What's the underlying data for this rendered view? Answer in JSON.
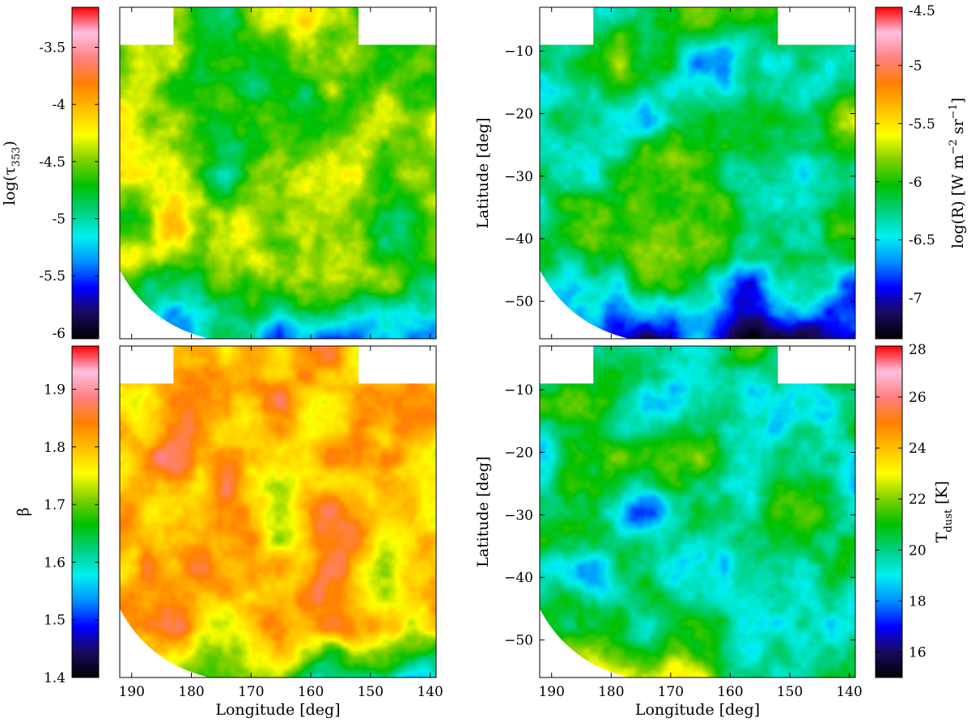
{
  "chart_data": [
    {
      "type": "heatmap",
      "panel": "top-left",
      "quantity": "log(τ353)",
      "colorbar": {
        "label_main": "log(τ",
        "label_sub": "353",
        "label_close": ")",
        "min": -6.05,
        "max": -3.15,
        "ticks": [
          -3.5,
          -4,
          -4.5,
          -5,
          -5.5,
          -6
        ],
        "tick_labels": [
          "-3.5",
          "-4",
          "-4.5",
          "-5",
          "-5.5",
          "-6"
        ],
        "side": "left"
      },
      "xlim": [
        192,
        139
      ],
      "ylim": [
        -56,
        -3
      ],
      "xlabel": "",
      "ylabel": "",
      "xticks": [
        190,
        180,
        170,
        160,
        150,
        140
      ],
      "show_x_tick_labels": false,
      "show_y_tick_labels": false,
      "bias": 0.55
    },
    {
      "type": "heatmap",
      "panel": "top-right",
      "quantity": "log(R) [W m-2 sr-1]",
      "colorbar": {
        "label_main": "log(R) [W m",
        "label_sup1": "−2",
        "label_mid": " sr",
        "label_sup2": "−1",
        "label_close": "]",
        "min": -7.35,
        "max": -4.5,
        "ticks": [
          -4.5,
          -5,
          -5.5,
          -6,
          -6.5,
          -7
        ],
        "tick_labels": [
          "-4.5",
          "-5",
          "-5.5",
          "-6",
          "-6.5",
          "-7"
        ],
        "side": "right"
      },
      "xlim": [
        192,
        139
      ],
      "ylim": [
        -56,
        -3
      ],
      "xlabel": "",
      "ylabel": "Latitude [deg]",
      "yticks": [
        -10,
        -20,
        -30,
        -40,
        -50
      ],
      "ytick_labels": [
        "−10",
        "−20",
        "−30",
        "−40",
        "−50"
      ],
      "xticks": [
        190,
        180,
        170,
        160,
        150,
        140
      ],
      "show_x_tick_labels": false,
      "show_y_tick_labels": true,
      "bias": 0.42
    },
    {
      "type": "heatmap",
      "panel": "bottom-left",
      "quantity": "β",
      "colorbar": {
        "label_main": "β",
        "min": 1.4,
        "max": 1.975,
        "ticks": [
          1.4,
          1.5,
          1.6,
          1.7,
          1.8,
          1.9
        ],
        "tick_labels": [
          "1.4",
          "1.5",
          "1.6",
          "1.7",
          "1.8",
          "1.9"
        ],
        "side": "left"
      },
      "xlim": [
        192,
        139
      ],
      "ylim": [
        -56,
        -3
      ],
      "xlabel": "Longitude [deg]",
      "ylabel": "",
      "xticks": [
        190,
        180,
        170,
        160,
        150,
        140
      ],
      "xtick_labels": [
        "190",
        "180",
        "170",
        "160",
        "150",
        "140"
      ],
      "show_x_tick_labels": true,
      "show_y_tick_labels": false,
      "bias": 0.68
    },
    {
      "type": "heatmap",
      "panel": "bottom-right",
      "quantity": "T_dust [K]",
      "colorbar": {
        "label_main": "T",
        "label_sub": "dust",
        "label_close": " [K]",
        "min": 15,
        "max": 28,
        "ticks": [
          16,
          18,
          20,
          22,
          24,
          26,
          28
        ],
        "tick_labels": [
          "16",
          "18",
          "20",
          "22",
          "24",
          "26",
          "28"
        ],
        "side": "right"
      },
      "xlim": [
        192,
        139
      ],
      "ylim": [
        -56,
        -3
      ],
      "xlabel": "Longitude [deg]",
      "ylabel": "Latitude [deg]",
      "yticks": [
        -10,
        -20,
        -30,
        -40,
        -50
      ],
      "ytick_labels": [
        "−10",
        "−20",
        "−30",
        "−40",
        "−50"
      ],
      "xticks": [
        190,
        180,
        170,
        160,
        150,
        140
      ],
      "xtick_labels": [
        "190",
        "180",
        "170",
        "160",
        "150",
        "140"
      ],
      "show_x_tick_labels": true,
      "show_y_tick_labels": true,
      "bias": 0.38
    }
  ],
  "colormap": [
    "#000000",
    "#1a0a5e",
    "#0000ff",
    "#0090ff",
    "#00f0f0",
    "#00d080",
    "#00c000",
    "#80d000",
    "#ffff00",
    "#ffc000",
    "#ff8000",
    "#ff8080",
    "#ffc0e0",
    "#ff0000"
  ]
}
